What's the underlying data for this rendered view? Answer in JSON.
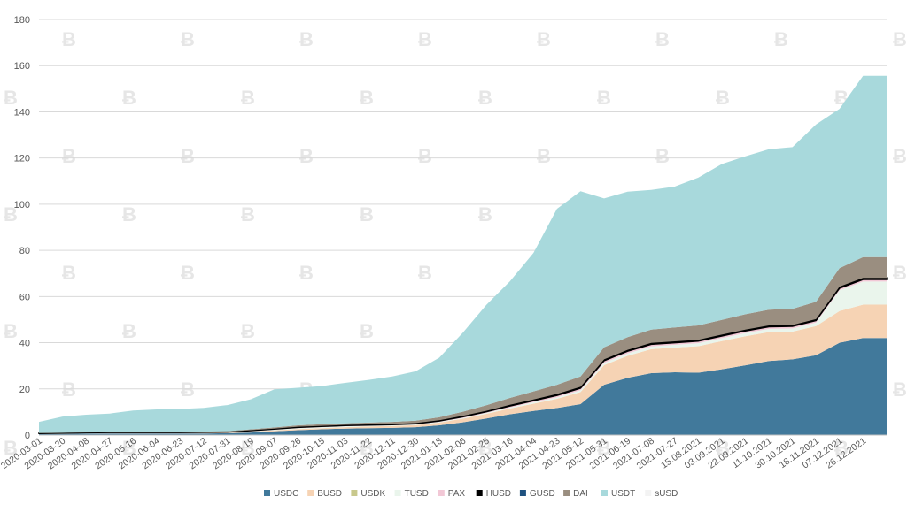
{
  "chart_data": {
    "type": "area",
    "stacked": true,
    "title": "",
    "xlabel": "",
    "ylabel": "",
    "ylim": [
      0,
      180
    ],
    "yticks": [
      0,
      20,
      40,
      60,
      80,
      100,
      120,
      140,
      160,
      180
    ],
    "grid": true,
    "legend_position": "bottom",
    "x_tick_labels": [
      "2020-03-01",
      "2020-03-20",
      "2020-04-08",
      "2020-04-27",
      "2020-05-16",
      "2020-06-04",
      "2020-06-23",
      "2020-07-12",
      "2020-07-31",
      "2020-08-19",
      "2020-09-07",
      "2020-09-26",
      "2020-10-15",
      "2020-11-03",
      "2020-11-22",
      "2020-12-11",
      "2020-12-30",
      "2021-01-18",
      "2021-02-06",
      "2021-02-25",
      "2021-03-16",
      "2021-04-04",
      "2021-04-23",
      "2021-05-12",
      "2021-05-31",
      "2021-06-19",
      "2021-07-08",
      "2021-07-27",
      "15.08.2021",
      "03.09.2021",
      "22.09.2021",
      "11.10.2021",
      "30.10.2021",
      "18.11.2021",
      "07.12.2021",
      "26.12.2021"
    ],
    "legend": [
      "USDC",
      "BUSD",
      "USDK",
      "TUSD",
      "PAX",
      "HUSD",
      "GUSD",
      "DAI",
      "USDT",
      "sUSD"
    ],
    "x": [
      "2020-03-01",
      "2020-03-20",
      "2020-04-08",
      "2020-04-27",
      "2020-05-16",
      "2020-06-04",
      "2020-06-23",
      "2020-07-12",
      "2020-07-31",
      "2020-08-19",
      "2020-09-07",
      "2020-09-26",
      "2020-10-15",
      "2020-11-03",
      "2020-11-22",
      "2020-12-11",
      "2020-12-30",
      "2021-01-18",
      "2021-02-06",
      "2021-02-25",
      "2021-03-16",
      "2021-04-04",
      "2021-04-23",
      "2021-05-12",
      "2021-05-31",
      "2021-06-19",
      "2021-07-08",
      "2021-07-27",
      "15.08.2021",
      "03.09.2021",
      "22.09.2021",
      "11.10.2021",
      "30.10.2021",
      "18.11.2021",
      "07.12.2021",
      "26.12.2021",
      "2022-01-01"
    ],
    "series": [
      {
        "name": "USDC",
        "color": "#41799b",
        "values": [
          0.4,
          0.5,
          0.6,
          0.7,
          0.7,
          0.7,
          0.7,
          0.7,
          0.8,
          1.1,
          1.6,
          2.1,
          2.5,
          2.8,
          3.0,
          3.1,
          3.4,
          4.2,
          5.5,
          7.2,
          9.0,
          10.4,
          11.7,
          13.4,
          21.8,
          24.8,
          26.8,
          27.2,
          27.0,
          28.5,
          30.2,
          32.1,
          32.8,
          34.6,
          40.0,
          42.0,
          42.0
        ]
      },
      {
        "name": "BUSD",
        "color": "#f6d3b4",
        "values": [
          0.0,
          0.0,
          0.1,
          0.1,
          0.1,
          0.1,
          0.1,
          0.2,
          0.2,
          0.3,
          0.4,
          0.5,
          0.5,
          0.6,
          0.7,
          0.8,
          0.9,
          1.2,
          1.6,
          2.0,
          2.5,
          3.2,
          4.0,
          5.2,
          8.5,
          9.5,
          10.4,
          10.7,
          11.5,
          12.2,
          12.6,
          12.5,
          12.0,
          12.6,
          13.7,
          14.5,
          14.5
        ]
      },
      {
        "name": "USDK",
        "color": "#c8c88c",
        "values": [
          0.0,
          0.0,
          0.0,
          0.0,
          0.0,
          0.0,
          0.0,
          0.0,
          0.0,
          0.0,
          0.0,
          0.0,
          0.0,
          0.0,
          0.0,
          0.0,
          0.0,
          0.0,
          0.0,
          0.0,
          0.0,
          0.0,
          0.0,
          0.0,
          0.0,
          0.0,
          0.0,
          0.0,
          0.0,
          0.0,
          0.0,
          0.0,
          0.0,
          0.0,
          0.0,
          0.0,
          0.0
        ]
      },
      {
        "name": "TUSD",
        "color": "#eaf5ec",
        "values": [
          0.1,
          0.1,
          0.1,
          0.1,
          0.1,
          0.1,
          0.1,
          0.1,
          0.1,
          0.2,
          0.3,
          0.4,
          0.4,
          0.4,
          0.3,
          0.3,
          0.3,
          0.3,
          0.3,
          0.4,
          0.5,
          0.6,
          0.7,
          0.8,
          1.0,
          1.1,
          1.2,
          1.2,
          1.3,
          1.3,
          1.4,
          1.4,
          1.4,
          1.5,
          9.0,
          10.0,
          10.0
        ]
      },
      {
        "name": "PAX",
        "color": "#f2c8d6",
        "values": [
          0.2,
          0.2,
          0.2,
          0.2,
          0.2,
          0.2,
          0.2,
          0.2,
          0.2,
          0.3,
          0.3,
          0.3,
          0.3,
          0.3,
          0.3,
          0.3,
          0.3,
          0.4,
          0.5,
          0.5,
          0.6,
          0.7,
          0.8,
          0.9,
          0.9,
          0.9,
          0.9,
          0.9,
          0.9,
          0.9,
          0.9,
          0.9,
          0.9,
          0.9,
          0.9,
          0.9,
          0.9
        ]
      },
      {
        "name": "HUSD",
        "color": "#000000",
        "values": [
          0.1,
          0.1,
          0.1,
          0.1,
          0.1,
          0.1,
          0.1,
          0.1,
          0.1,
          0.2,
          0.2,
          0.3,
          0.3,
          0.3,
          0.3,
          0.3,
          0.3,
          0.3,
          0.4,
          0.4,
          0.5,
          0.5,
          0.6,
          0.6,
          0.6,
          0.6,
          0.6,
          0.6,
          0.6,
          0.6,
          0.6,
          0.6,
          0.6,
          0.6,
          0.7,
          0.7,
          0.7
        ]
      },
      {
        "name": "GUSD",
        "color": "#1f5280",
        "values": [
          0.0,
          0.0,
          0.0,
          0.0,
          0.0,
          0.0,
          0.0,
          0.0,
          0.0,
          0.0,
          0.0,
          0.0,
          0.0,
          0.0,
          0.0,
          0.0,
          0.0,
          0.0,
          0.0,
          0.0,
          0.0,
          0.0,
          0.0,
          0.0,
          0.0,
          0.0,
          0.0,
          0.0,
          0.0,
          0.0,
          0.0,
          0.0,
          0.0,
          0.0,
          0.0,
          0.0,
          0.0
        ]
      },
      {
        "name": "DAI",
        "color": "#9a8e80",
        "values": [
          0.1,
          0.1,
          0.1,
          0.1,
          0.1,
          0.1,
          0.1,
          0.2,
          0.3,
          0.4,
          0.5,
          0.6,
          0.7,
          0.7,
          0.8,
          0.9,
          1.0,
          1.3,
          1.8,
          2.4,
          3.0,
          3.5,
          4.0,
          4.5,
          5.2,
          5.5,
          5.8,
          6.0,
          6.2,
          6.4,
          6.6,
          6.8,
          7.0,
          7.5,
          8.0,
          9.0,
          9.0
        ]
      },
      {
        "name": "USDT",
        "color": "#a8d9dc",
        "values": [
          4.8,
          7.0,
          7.6,
          8.0,
          9.3,
          9.8,
          10.0,
          10.3,
          11.3,
          13.0,
          16.5,
          16.3,
          16.5,
          17.5,
          18.5,
          19.7,
          21.4,
          25.8,
          34.2,
          43.5,
          50.5,
          60.0,
          76.2,
          80.2,
          64.5,
          63.0,
          60.5,
          61.0,
          64.0,
          67.5,
          68.4,
          69.5,
          70.0,
          76.8,
          69.0,
          78.5,
          78.5
        ]
      },
      {
        "name": "sUSD",
        "color": "#f3f3f3",
        "values": [
          0.0,
          0.0,
          0.0,
          0.0,
          0.0,
          0.0,
          0.0,
          0.0,
          0.0,
          0.0,
          0.0,
          0.0,
          0.0,
          0.0,
          0.0,
          0.0,
          0.0,
          0.0,
          0.0,
          0.0,
          0.0,
          0.0,
          0.0,
          0.0,
          0.0,
          0.0,
          0.0,
          0.0,
          0.0,
          0.0,
          0.0,
          0.0,
          0.0,
          0.0,
          0.0,
          0.0,
          0.0
        ]
      }
    ]
  }
}
